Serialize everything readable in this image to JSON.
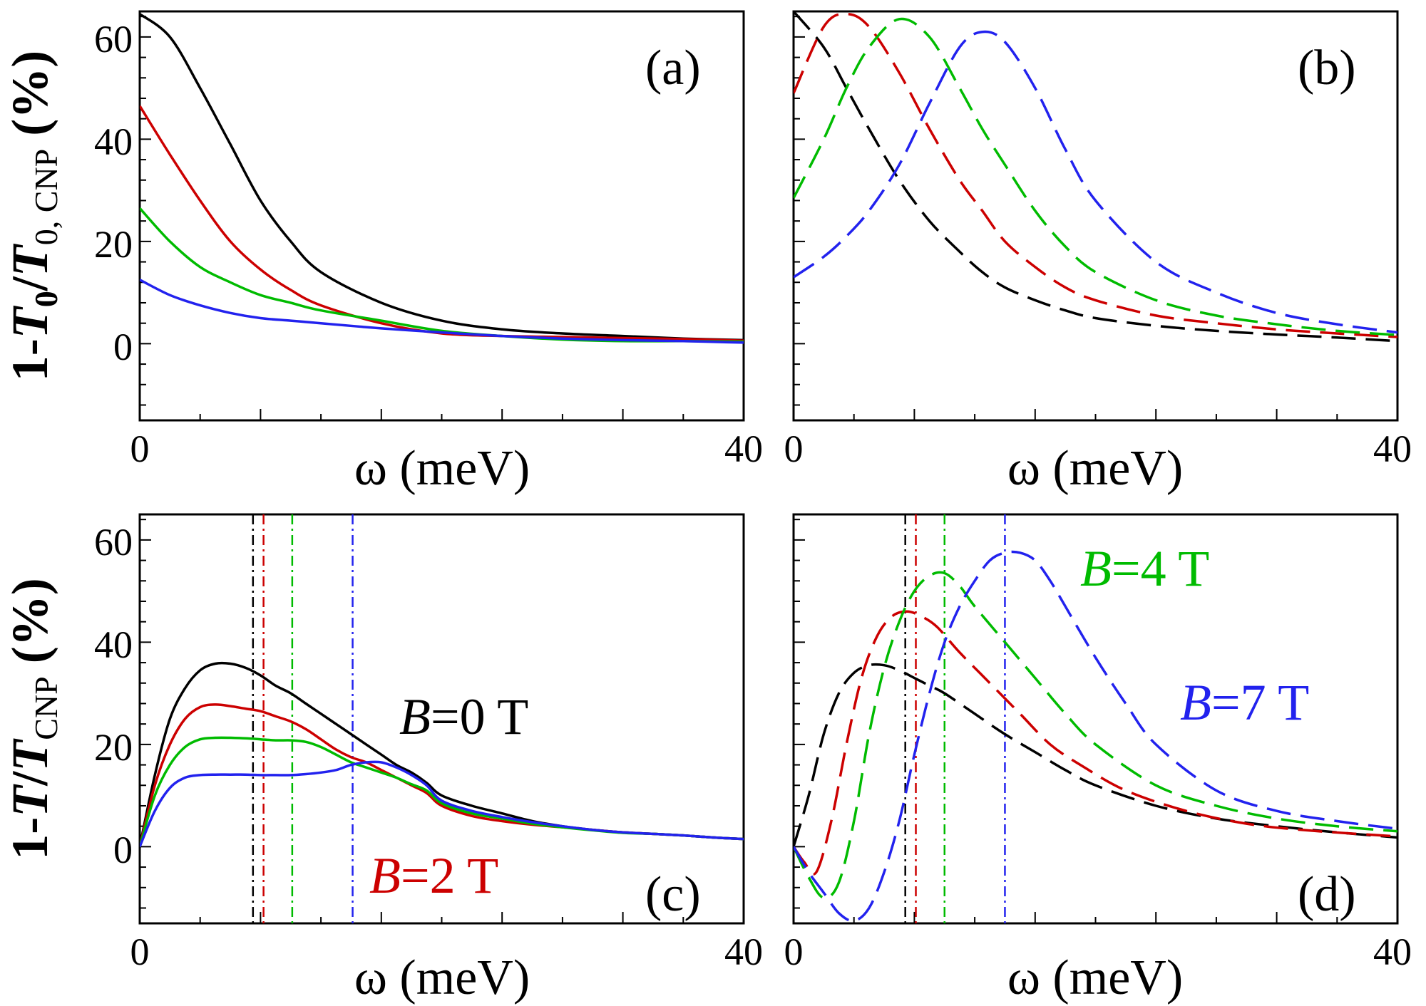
{
  "chart_data": [
    {
      "panel": "(a)",
      "type": "line",
      "xlabel": "ω (meV)",
      "ylabel_parts": {
        "a": "1-",
        "b": "T",
        "c": "0",
        "d": "/",
        "e": "T",
        "f": "0, CNP",
        "g": " (%)"
      },
      "xlim": [
        0,
        40
      ],
      "ylim": [
        -15,
        65
      ],
      "xticks": [
        "0",
        "40"
      ],
      "yticks": [
        "0",
        "20",
        "40",
        "60"
      ],
      "yticks_values": [
        0,
        20,
        40,
        60
      ],
      "line_style": "solid",
      "x": [
        0,
        2,
        4,
        6,
        8,
        10,
        12,
        16,
        20,
        24,
        28,
        32,
        36,
        40
      ],
      "series": [
        {
          "name": "B=0 T",
          "color": "#000000",
          "values": [
            64.5,
            60,
            50,
            39,
            28,
            20,
            14,
            8,
            4.5,
            2.8,
            2.0,
            1.5,
            1.0,
            0.7
          ]
        },
        {
          "name": "B=2 T",
          "color": "#cc0000",
          "values": [
            46.5,
            37,
            28,
            20,
            14.5,
            10.5,
            7.5,
            4.0,
            2.0,
            1.5,
            1.3,
            1.1,
            0.9,
            0.6
          ]
        },
        {
          "name": "B=4 T",
          "color": "#00bb00",
          "values": [
            26.5,
            20,
            15,
            12,
            9.5,
            8,
            6.5,
            4.5,
            2.5,
            1.5,
            0.8,
            0.5,
            0.5,
            0.4
          ]
        },
        {
          "name": "B=7 T",
          "color": "#2222ee",
          "values": [
            12.5,
            9.5,
            7.5,
            6,
            5,
            4.5,
            4,
            3.0,
            2.2,
            1.5,
            1.0,
            0.7,
            0.5,
            0.2
          ]
        }
      ]
    },
    {
      "panel": "(b)",
      "type": "line",
      "xlabel": "ω (meV)",
      "xlim": [
        0,
        40
      ],
      "ylim": [
        -15,
        65
      ],
      "xticks": [
        "0",
        "40"
      ],
      "yticks": [],
      "yticks_values": [
        0,
        20,
        40,
        60
      ],
      "line_style": "dashed",
      "x": [
        0,
        2,
        3.5,
        5,
        7,
        9,
        11,
        12.5,
        14,
        16,
        18,
        20,
        24,
        28,
        32,
        36,
        40
      ],
      "series": [
        {
          "name": "B=0 T",
          "color": "#000000",
          "values": [
            65,
            58,
            50,
            42,
            32,
            24,
            18,
            14,
            11,
            8.5,
            6.5,
            5,
            3.5,
            2.5,
            1.8,
            1.2,
            0.5
          ]
        },
        {
          "name": "B=2 T",
          "color": "#cc0000",
          "values": [
            49,
            62,
            64.5,
            62,
            53,
            42,
            32,
            26,
            20,
            15,
            11,
            8.5,
            5.5,
            4,
            2.8,
            2,
            1.3
          ]
        },
        {
          "name": "B=4 T",
          "color": "#00bb00",
          "values": [
            28.5,
            40,
            50,
            58,
            63.5,
            60,
            50,
            42,
            35,
            26,
            19,
            14,
            8.5,
            5.5,
            3.8,
            2.5,
            1.7
          ]
        },
        {
          "name": "B=7 T",
          "color": "#2222ee",
          "values": [
            13,
            17,
            21,
            26,
            35,
            47,
            58,
            61,
            59,
            50,
            38,
            28,
            16,
            10,
            6,
            3.8,
            2.2
          ]
        }
      ]
    },
    {
      "panel": "(c)",
      "type": "line",
      "xlabel": "ω (meV)",
      "ylabel_parts": {
        "a": "1-",
        "b": "T",
        "c": "",
        "d": "/",
        "e": "T",
        "f": "CNP",
        "g": " (%)"
      },
      "xlim": [
        0,
        40
      ],
      "ylim": [
        -15,
        65
      ],
      "xticks": [
        "0",
        "40"
      ],
      "yticks": [
        "0",
        "20",
        "40",
        "60"
      ],
      "yticks_values": [
        0,
        20,
        40,
        60
      ],
      "line_style": "solid",
      "annotations": {
        "b0": {
          "text_italic": "B",
          "text_rest": "=0 T",
          "color": "#000000"
        },
        "b2": {
          "text_italic": "B",
          "text_rest": "=2 T",
          "color": "#cc0000"
        }
      },
      "vlines": [
        {
          "x": 7.5,
          "color": "#000000"
        },
        {
          "x": 8.2,
          "color": "#cc0000"
        },
        {
          "x": 10.1,
          "color": "#00bb00"
        },
        {
          "x": 14.1,
          "color": "#2222ee"
        }
      ],
      "x": [
        0,
        1,
        2,
        3,
        4,
        5,
        6,
        7,
        8,
        9,
        10,
        11,
        12,
        13,
        14,
        15,
        16,
        17,
        18,
        19,
        20,
        22,
        24,
        26,
        28,
        30,
        32,
        34,
        36,
        38,
        40
      ],
      "series": [
        {
          "name": "B=0 T",
          "color": "#000000",
          "values": [
            0,
            14,
            25,
            31,
            34.5,
            35.8,
            35.8,
            35,
            33.5,
            31.5,
            30,
            28,
            26,
            24,
            22,
            20,
            18,
            16,
            14.5,
            12.5,
            10,
            8,
            6.5,
            5,
            4,
            3.3,
            2.8,
            2.5,
            2.2,
            1.8,
            1.5
          ]
        },
        {
          "name": "B=2 T",
          "color": "#cc0000",
          "values": [
            0,
            12,
            20,
            25,
            27.3,
            27.8,
            27.5,
            27,
            26.5,
            25.5,
            24.5,
            23,
            21,
            19,
            17.5,
            16.5,
            15,
            13.5,
            12,
            10.5,
            8,
            6,
            5,
            4.3,
            3.8,
            3.3,
            2.8,
            2.5,
            2.2,
            1.8,
            1.5
          ]
        },
        {
          "name": "B=4 T",
          "color": "#00bb00",
          "values": [
            0,
            10,
            16,
            19.5,
            21,
            21.3,
            21.3,
            21.2,
            21,
            20.8,
            20.8,
            20.5,
            19.5,
            18,
            16.5,
            15.5,
            14.5,
            13.5,
            12.2,
            11,
            8.5,
            6.5,
            5.5,
            4.5,
            3.8,
            3.2,
            2.7,
            2.5,
            2.2,
            1.8,
            1.5
          ]
        },
        {
          "name": "B=7 T",
          "color": "#2222ee",
          "values": [
            0,
            7,
            11.5,
            13.5,
            14,
            14.1,
            14.1,
            14.1,
            14,
            14,
            14,
            14.2,
            14.5,
            15,
            16,
            16.5,
            16.5,
            15.5,
            14,
            12,
            9,
            7,
            5.8,
            4.8,
            4,
            3.3,
            2.8,
            2.5,
            2.2,
            1.8,
            1.5
          ]
        }
      ]
    },
    {
      "panel": "(d)",
      "type": "line",
      "xlabel": "ω (meV)",
      "xlim": [
        0,
        40
      ],
      "ylim": [
        -15,
        65
      ],
      "xticks": [
        "0",
        "40"
      ],
      "yticks": [],
      "yticks_values": [
        0,
        20,
        40,
        60
      ],
      "line_style": "dashed",
      "annotations": {
        "b4": {
          "text_italic": "B",
          "text_rest": "=4 T",
          "color": "#00bb00"
        },
        "b7": {
          "text_italic": "B",
          "text_rest": "=7 T",
          "color": "#2222ee"
        }
      },
      "vlines": [
        {
          "x": 7.4,
          "color": "#000000"
        },
        {
          "x": 8.1,
          "color": "#cc0000"
        },
        {
          "x": 10.0,
          "color": "#00bb00"
        },
        {
          "x": 14.0,
          "color": "#2222ee"
        }
      ],
      "series": [
        {
          "name": "B=0 T",
          "color": "#000000",
          "x": [
            0,
            1,
            2,
            3,
            4,
            5,
            6,
            7,
            8,
            9,
            10,
            12,
            14,
            16,
            18,
            20,
            24,
            28,
            32,
            36,
            40
          ],
          "values": [
            0,
            10,
            22,
            30,
            34,
            35.5,
            35.5,
            34.5,
            33,
            31.5,
            30,
            26,
            22,
            18.5,
            15,
            12,
            8,
            5.5,
            4,
            2.8,
            1.8
          ]
        },
        {
          "name": "B=2 T",
          "color": "#cc0000",
          "x": [
            0,
            0.7,
            1.5,
            2.5,
            3.5,
            4.5,
            5.5,
            6.5,
            7.5,
            8.5,
            9.5,
            11,
            13,
            15,
            17,
            19,
            22,
            26,
            30,
            34,
            40
          ],
          "values": [
            0,
            -3,
            -5,
            5,
            20,
            33,
            41,
            45,
            46,
            45,
            43,
            38,
            32,
            26,
            20,
            16,
            11,
            7,
            4.5,
            3.2,
            2
          ]
        },
        {
          "name": "B=4 T",
          "color": "#00bb00",
          "x": [
            0,
            1,
            2,
            3,
            4,
            5,
            6,
            7,
            8,
            9,
            10,
            11,
            12,
            14,
            16,
            18,
            20,
            24,
            28,
            32,
            36,
            40
          ],
          "values": [
            0,
            -6,
            -10,
            -7,
            5,
            22,
            35,
            44,
            50,
            53,
            53.5,
            51,
            47,
            40,
            33,
            26,
            20,
            12,
            8,
            5.5,
            4,
            3
          ]
        },
        {
          "name": "B=7 T",
          "color": "#2222ee",
          "x": [
            0,
            1,
            2,
            3,
            4,
            5,
            6,
            7,
            8,
            9,
            10,
            11,
            12,
            13,
            14,
            15,
            16,
            17,
            18,
            20,
            22,
            24,
            28,
            32,
            36,
            40
          ],
          "values": [
            0,
            -5,
            -9,
            -13,
            -14.5,
            -12,
            -5,
            5,
            18,
            30,
            40,
            47,
            52,
            56,
            57.5,
            57.5,
            56,
            52,
            47,
            37,
            28,
            20,
            11,
            7,
            5,
            3.5
          ]
        }
      ]
    }
  ]
}
